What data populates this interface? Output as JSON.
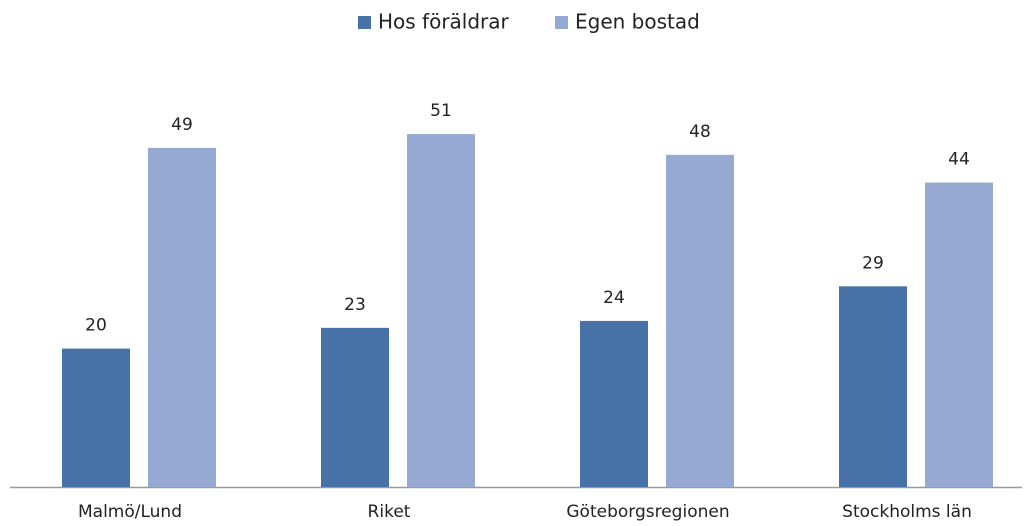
{
  "chart_data": {
    "type": "bar",
    "categories": [
      "Malmö/Lund",
      "Riket",
      "Göteborgsregionen",
      "Stockholms län"
    ],
    "series": [
      {
        "name": "Hos föräldrar",
        "color": "#4672a8",
        "values": [
          20,
          23,
          24,
          29
        ]
      },
      {
        "name": "Egen bostad",
        "color": "#95a9d2",
        "values": [
          49,
          51,
          48,
          44
        ]
      }
    ],
    "legend": "top"
  }
}
